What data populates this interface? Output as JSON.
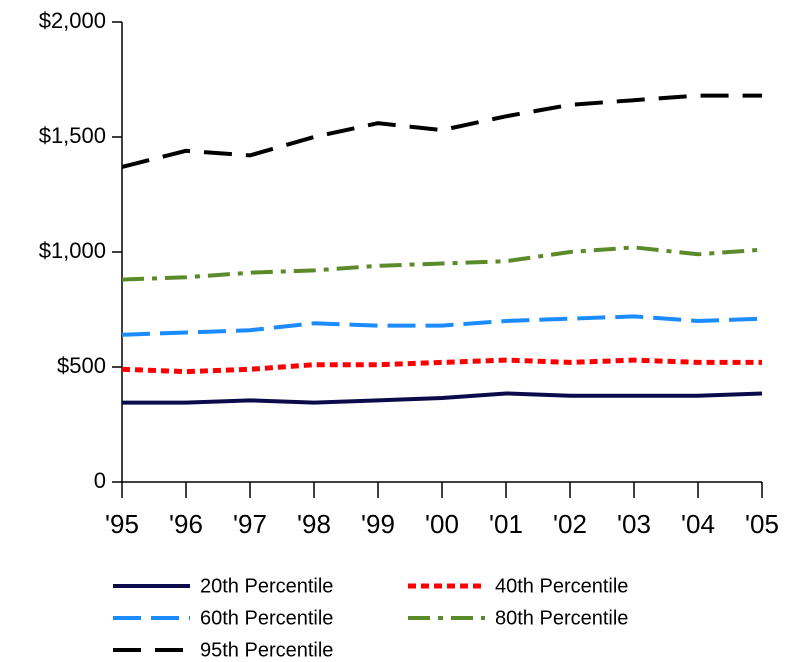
{
  "chart_data": {
    "type": "line",
    "categories": [
      "'95",
      "'96",
      "'97",
      "'98",
      "'99",
      "'00",
      "'01",
      "'02",
      "'03",
      "'04",
      "'05"
    ],
    "series": [
      {
        "name": "20th Percentile",
        "color": "#0b0b4b",
        "values": [
          345,
          345,
          355,
          345,
          355,
          365,
          385,
          375,
          375,
          375,
          385
        ]
      },
      {
        "name": "40th Percentile",
        "color": "#ff0000",
        "values": [
          490,
          480,
          490,
          510,
          510,
          520,
          530,
          520,
          530,
          520,
          520
        ]
      },
      {
        "name": "60th Percentile",
        "color": "#1a8cff",
        "values": [
          640,
          650,
          660,
          690,
          680,
          680,
          700,
          710,
          720,
          700,
          710
        ]
      },
      {
        "name": "80th Percentile",
        "color": "#5b8a2b",
        "values": [
          880,
          890,
          910,
          920,
          940,
          950,
          960,
          1000,
          1020,
          990,
          1010
        ]
      },
      {
        "name": "95th Percentile",
        "color": "#000000",
        "values": [
          1370,
          1440,
          1420,
          1500,
          1560,
          1530,
          1590,
          1640,
          1660,
          1680,
          1680
        ]
      }
    ],
    "ylim": [
      0,
      2000
    ],
    "yticks": [
      0,
      {
        "value": 500,
        "label": "$500"
      },
      {
        "value": 1000,
        "label": "$1,000"
      },
      {
        "value": 1500,
        "label": "$1,500"
      },
      {
        "value": 2000,
        "label": "$2,000"
      }
    ],
    "grid": false
  }
}
